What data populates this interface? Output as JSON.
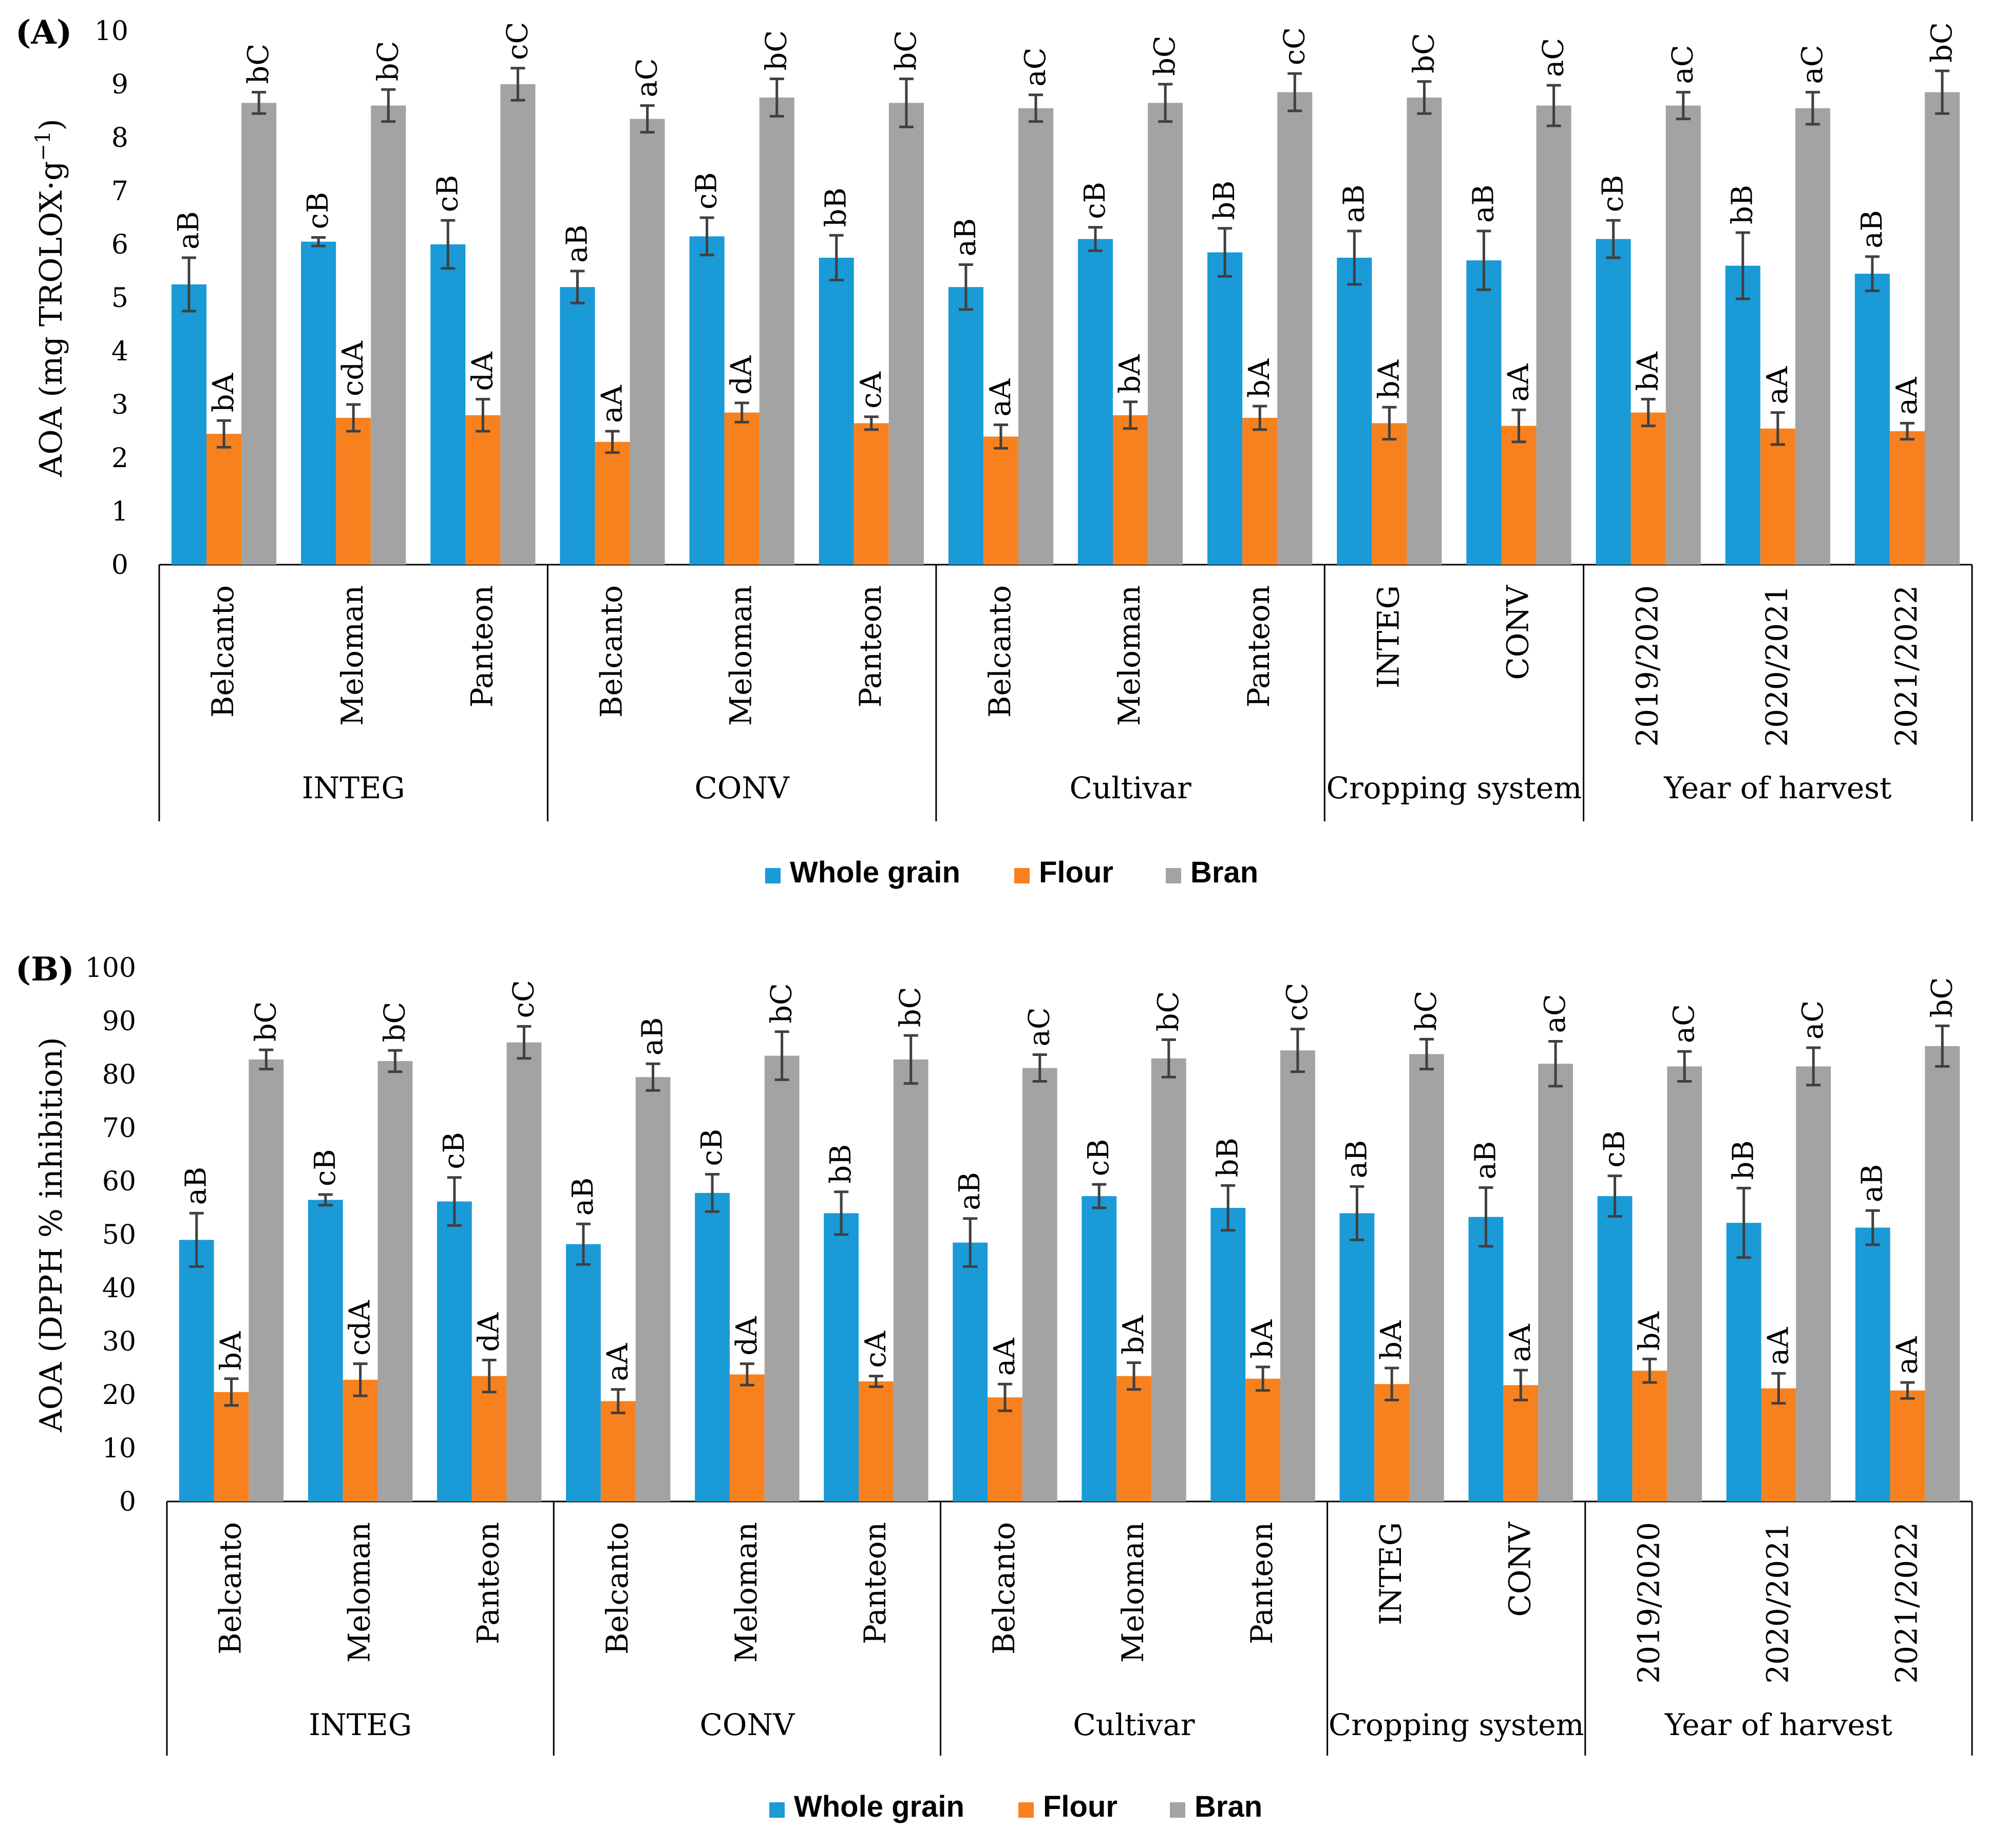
{
  "colors": {
    "whole": "#1a9ad6",
    "flour": "#f7811f",
    "bran": "#a3a3a3",
    "error": "#404040"
  },
  "chart_data": [
    {
      "type": "bar",
      "panel": "(A)",
      "ylabel": "AOA (mg TROLOX·g",
      "ylabel_sup": "−1",
      "ylabel_end": ")",
      "ylim": [
        0,
        10
      ],
      "yticks": [
        "0",
        "1",
        "2",
        "3",
        "4",
        "5",
        "6",
        "7",
        "8",
        "9",
        "10"
      ],
      "legend": [
        "Whole grain",
        "Flour",
        "Bran"
      ],
      "groups": [
        {
          "label": "INTEG",
          "categories": [
            {
              "label": "Belcanto",
              "values": [
                5.25,
                2.45,
                8.65
              ],
              "errors": [
                0.5,
                0.25,
                0.2
              ],
              "letters": [
                "aB",
                "bA",
                "bC"
              ]
            },
            {
              "label": "Meloman",
              "values": [
                6.05,
                2.75,
                8.6
              ],
              "errors": [
                0.08,
                0.25,
                0.3
              ],
              "letters": [
                "cB",
                "cdA",
                "bC"
              ]
            },
            {
              "label": "Panteon",
              "values": [
                6.0,
                2.8,
                9.0
              ],
              "errors": [
                0.45,
                0.3,
                0.3
              ],
              "letters": [
                "cB",
                "dA",
                "cC"
              ]
            }
          ]
        },
        {
          "label": "CONV",
          "categories": [
            {
              "label": "Belcanto",
              "values": [
                5.2,
                2.3,
                8.35
              ],
              "errors": [
                0.3,
                0.2,
                0.25
              ],
              "letters": [
                "aB",
                "aA",
                "aC"
              ]
            },
            {
              "label": "Meloman",
              "values": [
                6.15,
                2.85,
                8.75
              ],
              "errors": [
                0.35,
                0.18,
                0.35
              ],
              "letters": [
                "cB",
                "dA",
                "bC"
              ]
            },
            {
              "label": "Panteon",
              "values": [
                5.75,
                2.65,
                8.65
              ],
              "errors": [
                0.42,
                0.12,
                0.45
              ],
              "letters": [
                "bB",
                "cA",
                "bC"
              ]
            }
          ]
        },
        {
          "label": "Cultivar",
          "categories": [
            {
              "label": "Belcanto",
              "values": [
                5.2,
                2.4,
                8.55
              ],
              "errors": [
                0.42,
                0.22,
                0.25
              ],
              "letters": [
                "aB",
                "aA",
                "aC"
              ]
            },
            {
              "label": "Meloman",
              "values": [
                6.1,
                2.8,
                8.65
              ],
              "errors": [
                0.22,
                0.25,
                0.35
              ],
              "letters": [
                "cB",
                "bA",
                "bC"
              ]
            },
            {
              "label": "Panteon",
              "values": [
                5.85,
                2.75,
                8.85
              ],
              "errors": [
                0.45,
                0.22,
                0.35
              ],
              "letters": [
                "bB",
                "bA",
                "cC"
              ]
            }
          ]
        },
        {
          "label": "Cropping system",
          "categories": [
            {
              "label": "INTEG",
              "values": [
                5.75,
                2.65,
                8.75
              ],
              "errors": [
                0.5,
                0.3,
                0.3
              ],
              "letters": [
                "aB",
                "bA",
                "bC"
              ]
            },
            {
              "label": "CONV",
              "values": [
                5.7,
                2.6,
                8.6
              ],
              "errors": [
                0.55,
                0.3,
                0.38
              ],
              "letters": [
                "aB",
                "aA",
                "aC"
              ]
            }
          ]
        },
        {
          "label": "Year of harvest",
          "categories": [
            {
              "label": "2019/2020",
              "values": [
                6.1,
                2.85,
                8.6
              ],
              "errors": [
                0.35,
                0.25,
                0.25
              ],
              "letters": [
                "cB",
                "bA",
                "aC"
              ]
            },
            {
              "label": "2020/2021",
              "values": [
                5.6,
                2.55,
                8.55
              ],
              "errors": [
                0.62,
                0.3,
                0.3
              ],
              "letters": [
                "bB",
                "aA",
                "aC"
              ]
            },
            {
              "label": "2021/2022",
              "values": [
                5.45,
                2.5,
                8.85
              ],
              "errors": [
                0.32,
                0.15,
                0.4
              ],
              "letters": [
                "aB",
                "aA",
                "bC"
              ]
            }
          ]
        }
      ]
    },
    {
      "type": "bar",
      "panel": "(B)",
      "ylabel": "AOA (DPPH % inhibition)",
      "ylim": [
        0,
        100
      ],
      "yticks": [
        "0",
        "10",
        "20",
        "30",
        "40",
        "50",
        "60",
        "70",
        "80",
        "90",
        "100"
      ],
      "legend": [
        "Whole grain",
        "Flour",
        "Bran"
      ],
      "groups": [
        {
          "label": "INTEG",
          "categories": [
            {
              "label": "Belcanto",
              "values": [
                49,
                20.5,
                82.8
              ],
              "errors": [
                5,
                2.5,
                1.8
              ],
              "letters": [
                "aB",
                "bA",
                "bC"
              ]
            },
            {
              "label": "Meloman",
              "values": [
                56.5,
                22.8,
                82.5
              ],
              "errors": [
                1,
                3,
                2
              ],
              "letters": [
                "cB",
                "cdA",
                "bC"
              ]
            },
            {
              "label": "Panteon",
              "values": [
                56.2,
                23.5,
                86
              ],
              "errors": [
                4.5,
                3,
                3
              ],
              "letters": [
                "cB",
                "dA",
                "cC"
              ]
            }
          ]
        },
        {
          "label": "CONV",
          "categories": [
            {
              "label": "Belcanto",
              "values": [
                48.2,
                18.8,
                79.5
              ],
              "errors": [
                3.8,
                2.2,
                2.5
              ],
              "letters": [
                "aB",
                "aA",
                "aB"
              ]
            },
            {
              "label": "Meloman",
              "values": [
                57.8,
                23.8,
                83.5
              ],
              "errors": [
                3.5,
                2,
                4.5
              ],
              "letters": [
                "cB",
                "dA",
                "bC"
              ]
            },
            {
              "label": "Panteon",
              "values": [
                54,
                22.5,
                82.8
              ],
              "errors": [
                4,
                1,
                4.5
              ],
              "letters": [
                "bB",
                "cA",
                "bC"
              ]
            }
          ]
        },
        {
          "label": "Cultivar",
          "categories": [
            {
              "label": "Belcanto",
              "values": [
                48.5,
                19.5,
                81.2
              ],
              "errors": [
                4.5,
                2.5,
                2.5
              ],
              "letters": [
                "aB",
                "aA",
                "aC"
              ]
            },
            {
              "label": "Meloman",
              "values": [
                57.2,
                23.5,
                83
              ],
              "errors": [
                2.2,
                2.5,
                3.5
              ],
              "letters": [
                "cB",
                "bA",
                "bC"
              ]
            },
            {
              "label": "Panteon",
              "values": [
                55,
                23,
                84.5
              ],
              "errors": [
                4.2,
                2.2,
                4
              ],
              "letters": [
                "bB",
                "bA",
                "cC"
              ]
            }
          ]
        },
        {
          "label": "Cropping system",
          "categories": [
            {
              "label": "INTEG",
              "values": [
                54,
                22,
                83.8
              ],
              "errors": [
                5,
                3,
                2.8
              ],
              "letters": [
                "aB",
                "bA",
                "bC"
              ]
            },
            {
              "label": "CONV",
              "values": [
                53.3,
                21.8,
                82
              ],
              "errors": [
                5.5,
                2.8,
                4.2
              ],
              "letters": [
                "aB",
                "aA",
                "aC"
              ]
            }
          ]
        },
        {
          "label": "Year of harvest",
          "categories": [
            {
              "label": "2019/2020",
              "values": [
                57.2,
                24.5,
                81.5
              ],
              "errors": [
                3.8,
                2.2,
                2.8
              ],
              "letters": [
                "cB",
                "bA",
                "aC"
              ]
            },
            {
              "label": "2020/2021",
              "values": [
                52.2,
                21.2,
                81.5
              ],
              "errors": [
                6.5,
                2.8,
                3.5
              ],
              "letters": [
                "bB",
                "aA",
                "aC"
              ]
            },
            {
              "label": "2021/2022",
              "values": [
                51.3,
                20.8,
                85.3
              ],
              "errors": [
                3.2,
                1.5,
                3.8
              ],
              "letters": [
                "aB",
                "aA",
                "bC"
              ]
            }
          ]
        }
      ]
    }
  ]
}
